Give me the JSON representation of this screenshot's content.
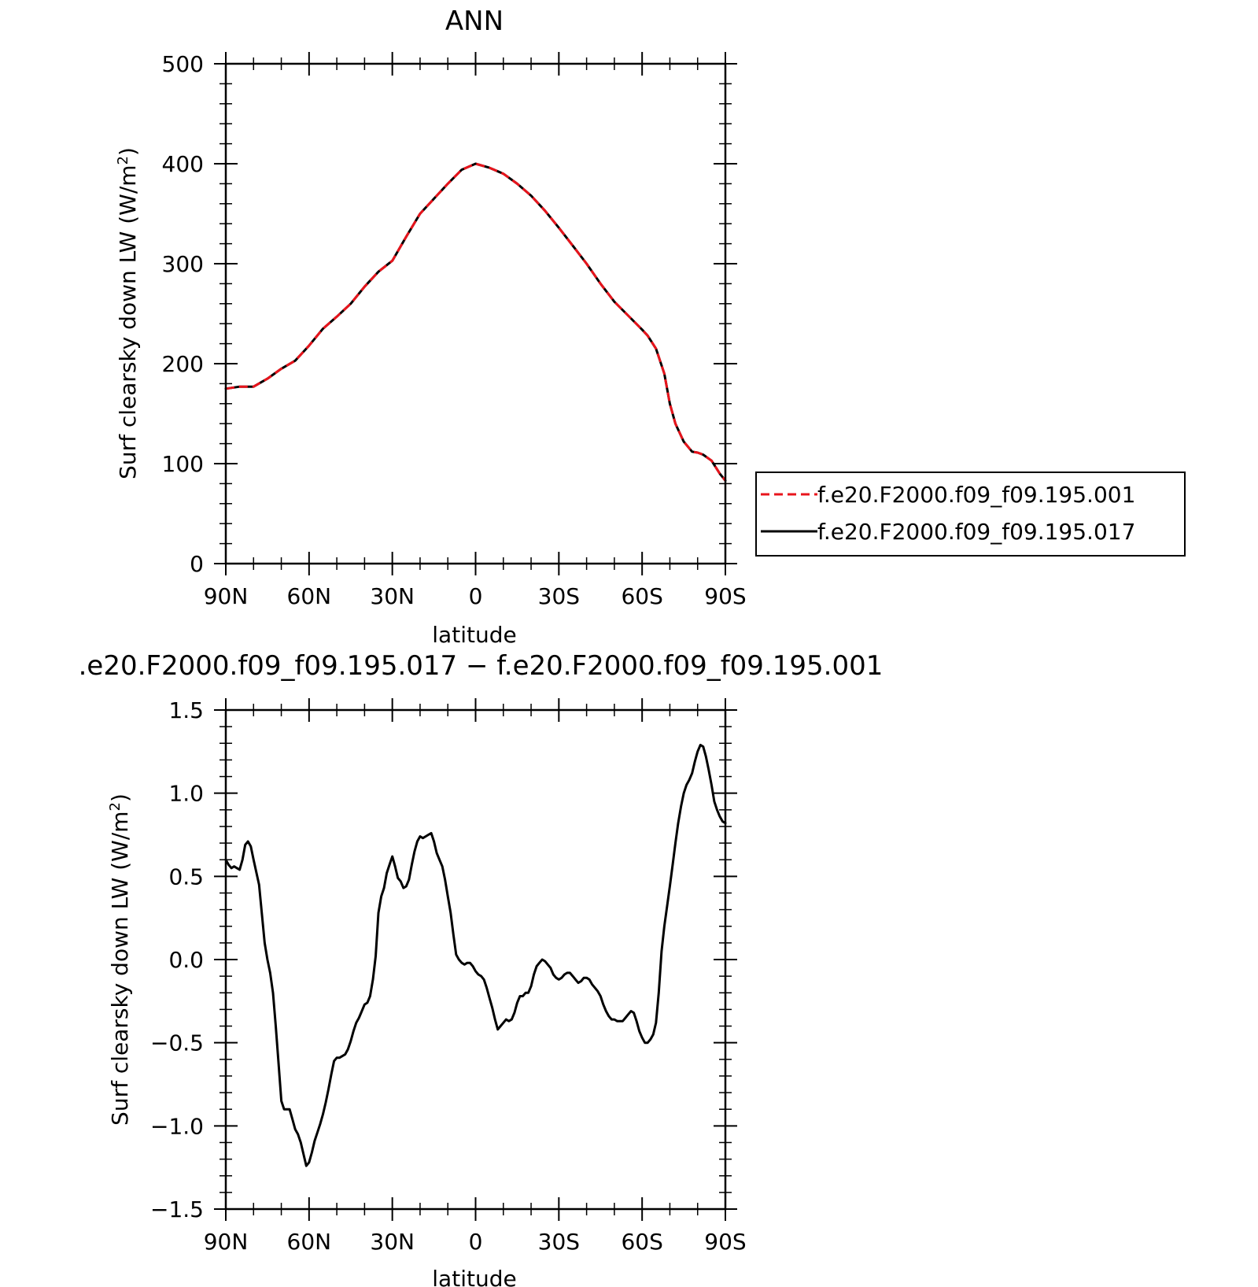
{
  "chart_data": [
    {
      "type": "line",
      "title": "ANN",
      "xlabel": "latitude",
      "ylabel": "Surf clearsky down LW (W/m",
      "ylabel_sup": "2",
      "ylabel_close": ")",
      "xlim": [
        90,
        -90
      ],
      "ylim": [
        0,
        500
      ],
      "xticks": [
        90,
        60,
        30,
        0,
        -30,
        -60,
        -90
      ],
      "xtick_labels": [
        "90N",
        "60N",
        "30N",
        "0",
        "30S",
        "60S",
        "90S"
      ],
      "yticks": [
        0,
        100,
        200,
        300,
        400,
        500
      ],
      "ytick_labels": [
        "0",
        "100",
        "200",
        "300",
        "400",
        "500"
      ],
      "grid": false,
      "legend_position": "right",
      "series": [
        {
          "name": "f.e20.F2000.f09_f09.195.001",
          "color": "#e8141c",
          "dash": "dashed",
          "x": [
            90,
            85,
            80,
            75,
            70,
            65,
            60,
            55,
            50,
            45,
            40,
            35,
            30,
            25,
            20,
            15,
            10,
            5,
            0,
            -5,
            -10,
            -15,
            -20,
            -25,
            -30,
            -35,
            -40,
            -45,
            -50,
            -55,
            -60,
            -62,
            -65,
            -68,
            -70,
            -72,
            -75,
            -78,
            -80,
            -82,
            -85,
            -88,
            -90
          ],
          "values": [
            175,
            177,
            177,
            185,
            195,
            203,
            218,
            235,
            247,
            260,
            277,
            292,
            303,
            327,
            350,
            365,
            380,
            394,
            400,
            396,
            390,
            380,
            368,
            353,
            336,
            318,
            300,
            280,
            262,
            248,
            234,
            228,
            215,
            190,
            160,
            140,
            122,
            112,
            111,
            109,
            103,
            90,
            83
          ]
        },
        {
          "name": "f.e20.F2000.f09_f09.195.017",
          "color": "#000000",
          "dash": "solid",
          "x": [
            90,
            85,
            80,
            75,
            70,
            65,
            60,
            55,
            50,
            45,
            40,
            35,
            30,
            25,
            20,
            15,
            10,
            5,
            0,
            -5,
            -10,
            -15,
            -20,
            -25,
            -30,
            -35,
            -40,
            -45,
            -50,
            -55,
            -60,
            -62,
            -65,
            -68,
            -70,
            -72,
            -75,
            -78,
            -80,
            -82,
            -85,
            -88,
            -90
          ],
          "values": [
            175,
            177,
            177,
            185,
            195,
            203,
            218,
            235,
            247,
            260,
            277,
            292,
            303,
            327,
            350,
            365,
            380,
            394,
            400,
            396,
            390,
            380,
            368,
            353,
            336,
            318,
            300,
            280,
            262,
            248,
            234,
            228,
            215,
            190,
            160,
            140,
            122,
            112,
            111,
            109,
            103,
            90,
            83
          ]
        }
      ]
    },
    {
      "type": "line",
      "title": ".e20.F2000.f09_f09.195.017 − f.e20.F2000.f09_f09.195.001",
      "xlabel": "latitude",
      "ylabel": "Surf clearsky down LW (W/m",
      "ylabel_sup": "2",
      "ylabel_close": ")",
      "xlim": [
        90,
        -90
      ],
      "ylim": [
        -1.5,
        1.5
      ],
      "xticks": [
        90,
        60,
        30,
        0,
        -30,
        -60,
        -90
      ],
      "xtick_labels": [
        "90N",
        "60N",
        "30N",
        "0",
        "30S",
        "60S",
        "90S"
      ],
      "yticks": [
        1.5,
        1.0,
        0.5,
        0.0,
        -0.5,
        -1.0,
        -1.5
      ],
      "ytick_labels": [
        "1.5",
        "1.0",
        "0.5",
        "0.0",
        "−0.5",
        "−1.0",
        "−1.5"
      ],
      "grid": false,
      "series": [
        {
          "color": "#000000",
          "dash": "solid",
          "x": [
            90,
            89,
            88,
            87,
            86,
            85,
            84,
            83,
            82,
            81,
            80,
            78,
            76,
            75,
            74,
            73,
            72,
            71,
            70,
            69,
            68,
            67,
            66,
            65,
            64,
            63,
            62,
            61,
            60,
            59,
            58,
            57,
            56,
            55,
            54,
            53,
            52,
            51,
            50,
            49,
            48,
            47,
            46,
            45,
            44,
            43,
            42,
            41,
            40,
            39,
            38,
            37,
            36,
            35,
            34,
            33,
            32,
            31,
            30,
            29,
            28,
            27,
            26,
            25,
            24,
            23,
            22,
            21,
            20,
            19,
            18,
            17,
            16,
            15,
            14,
            13,
            12,
            11,
            10,
            9,
            8,
            7,
            6,
            5,
            4,
            3,
            2,
            1,
            0,
            -1,
            -2,
            -3,
            -4,
            -5,
            -6,
            -7,
            -8,
            -9,
            -10,
            -11,
            -12,
            -13,
            -14,
            -15,
            -16,
            -17,
            -18,
            -19,
            -20,
            -21,
            -22,
            -23,
            -24,
            -25,
            -26,
            -27,
            -28,
            -29,
            -30,
            -31,
            -32,
            -33,
            -34,
            -35,
            -36,
            -37,
            -38,
            -39,
            -40,
            -41,
            -42,
            -43,
            -44,
            -45,
            -46,
            -47,
            -48,
            -49,
            -50,
            -51,
            -52,
            -53,
            -54,
            -55,
            -56,
            -57,
            -58,
            -59,
            -60,
            -61,
            -62,
            -63,
            -64,
            -65,
            -66,
            -67,
            -68,
            -69,
            -70,
            -71,
            -72,
            -73,
            -74,
            -75,
            -76,
            -77,
            -78,
            -79,
            -80,
            -81,
            -82,
            -83,
            -84,
            -85,
            -86,
            -87,
            -88,
            -89,
            -90
          ],
          "values": [
            0.6,
            0.57,
            0.55,
            0.56,
            0.55,
            0.54,
            0.6,
            0.69,
            0.71,
            0.68,
            0.6,
            0.45,
            0.1,
            0.0,
            -0.08,
            -0.2,
            -0.4,
            -0.62,
            -0.85,
            -0.9,
            -0.9,
            -0.9,
            -0.96,
            -1.02,
            -1.05,
            -1.1,
            -1.17,
            -1.24,
            -1.22,
            -1.16,
            -1.09,
            -1.04,
            -0.99,
            -0.93,
            -0.86,
            -0.78,
            -0.69,
            -0.61,
            -0.59,
            -0.59,
            -0.58,
            -0.57,
            -0.54,
            -0.49,
            -0.43,
            -0.38,
            -0.35,
            -0.31,
            -0.27,
            -0.26,
            -0.22,
            -0.12,
            0.02,
            0.28,
            0.38,
            0.43,
            0.52,
            0.57,
            0.62,
            0.56,
            0.49,
            0.47,
            0.43,
            0.44,
            0.48,
            0.57,
            0.65,
            0.71,
            0.74,
            0.73,
            0.74,
            0.75,
            0.76,
            0.71,
            0.64,
            0.6,
            0.56,
            0.48,
            0.38,
            0.28,
            0.15,
            0.03,
            0.0,
            -0.02,
            -0.03,
            -0.02,
            -0.02,
            -0.04,
            -0.07,
            -0.09,
            -0.1,
            -0.12,
            -0.17,
            -0.23,
            -0.29,
            -0.36,
            -0.42,
            -0.4,
            -0.38,
            -0.36,
            -0.37,
            -0.36,
            -0.32,
            -0.26,
            -0.22,
            -0.22,
            -0.2,
            -0.2,
            -0.16,
            -0.09,
            -0.04,
            -0.02,
            0.0,
            -0.01,
            -0.03,
            -0.05,
            -0.09,
            -0.11,
            -0.12,
            -0.11,
            -0.09,
            -0.08,
            -0.08,
            -0.1,
            -0.12,
            -0.14,
            -0.13,
            -0.11,
            -0.11,
            -0.12,
            -0.15,
            -0.17,
            -0.19,
            -0.22,
            -0.27,
            -0.31,
            -0.34,
            -0.36,
            -0.36,
            -0.37,
            -0.37,
            -0.37,
            -0.35,
            -0.33,
            -0.31,
            -0.32,
            -0.37,
            -0.43,
            -0.47,
            -0.5,
            -0.5,
            -0.48,
            -0.45,
            -0.38,
            -0.2,
            0.05,
            0.2,
            0.32,
            0.44,
            0.57,
            0.7,
            0.82,
            0.92,
            1.0,
            1.05,
            1.08,
            1.12,
            1.19,
            1.25,
            1.29,
            1.28,
            1.22,
            1.14,
            1.05,
            0.95,
            0.9,
            0.86,
            0.83,
            0.82
          ]
        }
      ]
    }
  ]
}
